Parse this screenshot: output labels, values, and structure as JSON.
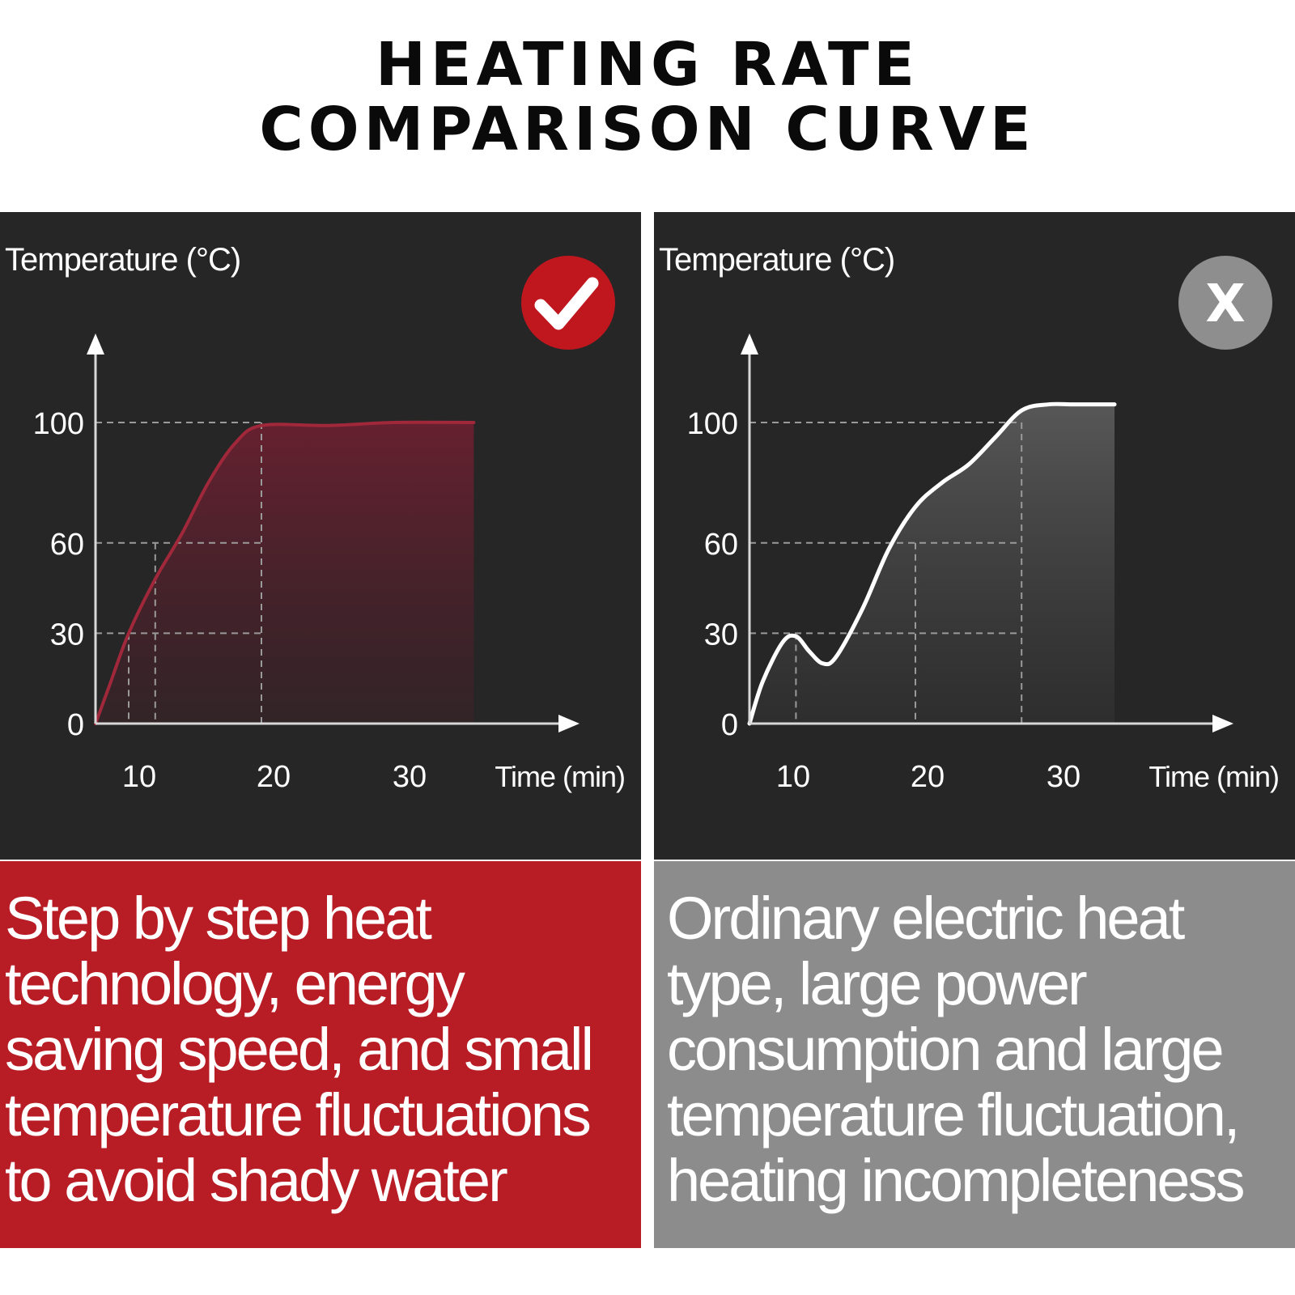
{
  "title": {
    "line1": "HEATING RATE",
    "line2": "COMPARISON CURVE"
  },
  "colors": {
    "good_accent": "#b81c24",
    "bad_accent": "#8c8c8c",
    "panel_bg": "#262626"
  },
  "chart_data": [
    {
      "type": "area",
      "ylabel": "Temperature (°C)",
      "xlabel": "Time (min)",
      "x_ticks": [
        10,
        20,
        30
      ],
      "y_ticks": [
        0,
        30,
        60,
        100
      ],
      "xlim": [
        7.5,
        40
      ],
      "ylim": [
        0,
        130
      ],
      "badge": "check-icon",
      "series": [
        {
          "x": [
            7.5,
            8.5,
            10,
            12,
            14,
            16,
            18,
            20,
            25,
            30,
            36
          ],
          "y": [
            0,
            12,
            30,
            48,
            63,
            80,
            93,
            99,
            99,
            100,
            100
          ]
        }
      ],
      "color": "#b81c24",
      "grid": "dashed guides at 30, 60, 100"
    },
    {
      "type": "area",
      "ylabel": "Temperature (°C)",
      "xlabel": "Time (min)",
      "x_ticks": [
        10,
        20,
        30
      ],
      "y_ticks": [
        0,
        30,
        60,
        100
      ],
      "xlim": [
        7.5,
        40
      ],
      "ylim": [
        0,
        130
      ],
      "badge": "close-icon",
      "badge_text": "X",
      "series": [
        {
          "x": [
            7.5,
            8.5,
            10,
            11,
            12,
            13,
            14,
            16,
            18,
            20,
            22,
            24,
            26,
            28,
            30,
            32,
            35
          ],
          "y": [
            0,
            14,
            27,
            29,
            24,
            20,
            22,
            38,
            58,
            72,
            80,
            86,
            95,
            104,
            106,
            106,
            106
          ]
        }
      ],
      "color": "#ffffff",
      "grid": "dashed guides at 30, 60, 100"
    }
  ],
  "descriptions": {
    "left_lines": [
      "Step by step heat",
      "technology, energy",
      "saving speed, and small",
      "temperature fluctuations",
      "to avoid shady water"
    ],
    "right_lines": [
      "Ordinary electric heat",
      "type, large power",
      "consumption and large",
      "temperature fluctuation,",
      "heating incompleteness"
    ]
  }
}
